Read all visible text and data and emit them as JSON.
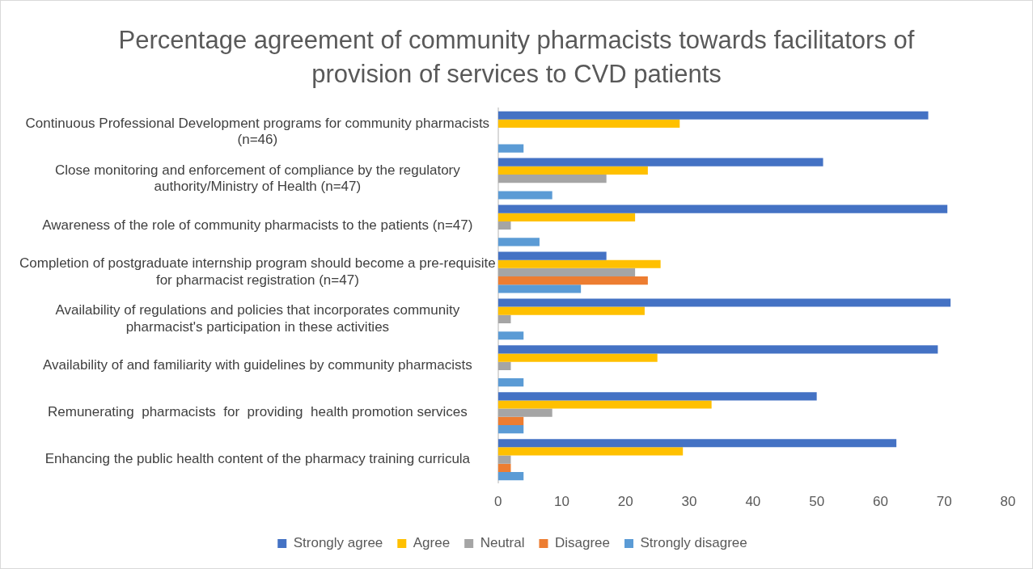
{
  "chart_data": {
    "type": "bar",
    "orientation": "horizontal",
    "title": "Percentage agreement of community pharmacists towards facilitators of  provision of services to CVD patients",
    "categories": [
      "Continuous Professional Development programs for community pharmacists (n=46)",
      "Close monitoring and enforcement of compliance by the regulatory authority/Ministry of Health (n=47)",
      "Awareness of the role of community pharmacists to the patients (n=47)",
      "Completion of postgraduate internship program should become a pre-requisite for pharmacist registration (n=47)",
      "Availability of regulations and policies that incorporates community pharmacist's participation in these activities",
      "Availability of and familiarity with guidelines by community pharmacists",
      "Remunerating  pharmacists  for  providing  health promotion services",
      "Enhancing the public health content of the pharmacy training curricula"
    ],
    "series": [
      {
        "name": "Strongly agree",
        "color": "#4472c4",
        "values": [
          67.5,
          51,
          70.5,
          17,
          71,
          69,
          50,
          62.5
        ]
      },
      {
        "name": "Agree",
        "color": "#ffc000",
        "values": [
          28.5,
          23.5,
          21.5,
          25.5,
          23,
          25,
          33.5,
          29
        ]
      },
      {
        "name": "Neutral",
        "color": "#a5a5a5",
        "values": [
          0,
          17,
          2,
          21.5,
          2,
          2,
          8.5,
          2
        ]
      },
      {
        "name": "Disagree",
        "color": "#ed7d31",
        "values": [
          0,
          0,
          0,
          23.5,
          0,
          0,
          4,
          2
        ]
      },
      {
        "name": "Strongly disagree",
        "color": "#5b9bd5",
        "values": [
          4,
          8.5,
          6.5,
          13,
          4,
          4,
          4,
          4
        ]
      }
    ],
    "xlim": [
      0,
      80
    ],
    "xticks": [
      0,
      10,
      20,
      30,
      40,
      50,
      60,
      70,
      80
    ],
    "grid": false,
    "legend": "bottom"
  }
}
